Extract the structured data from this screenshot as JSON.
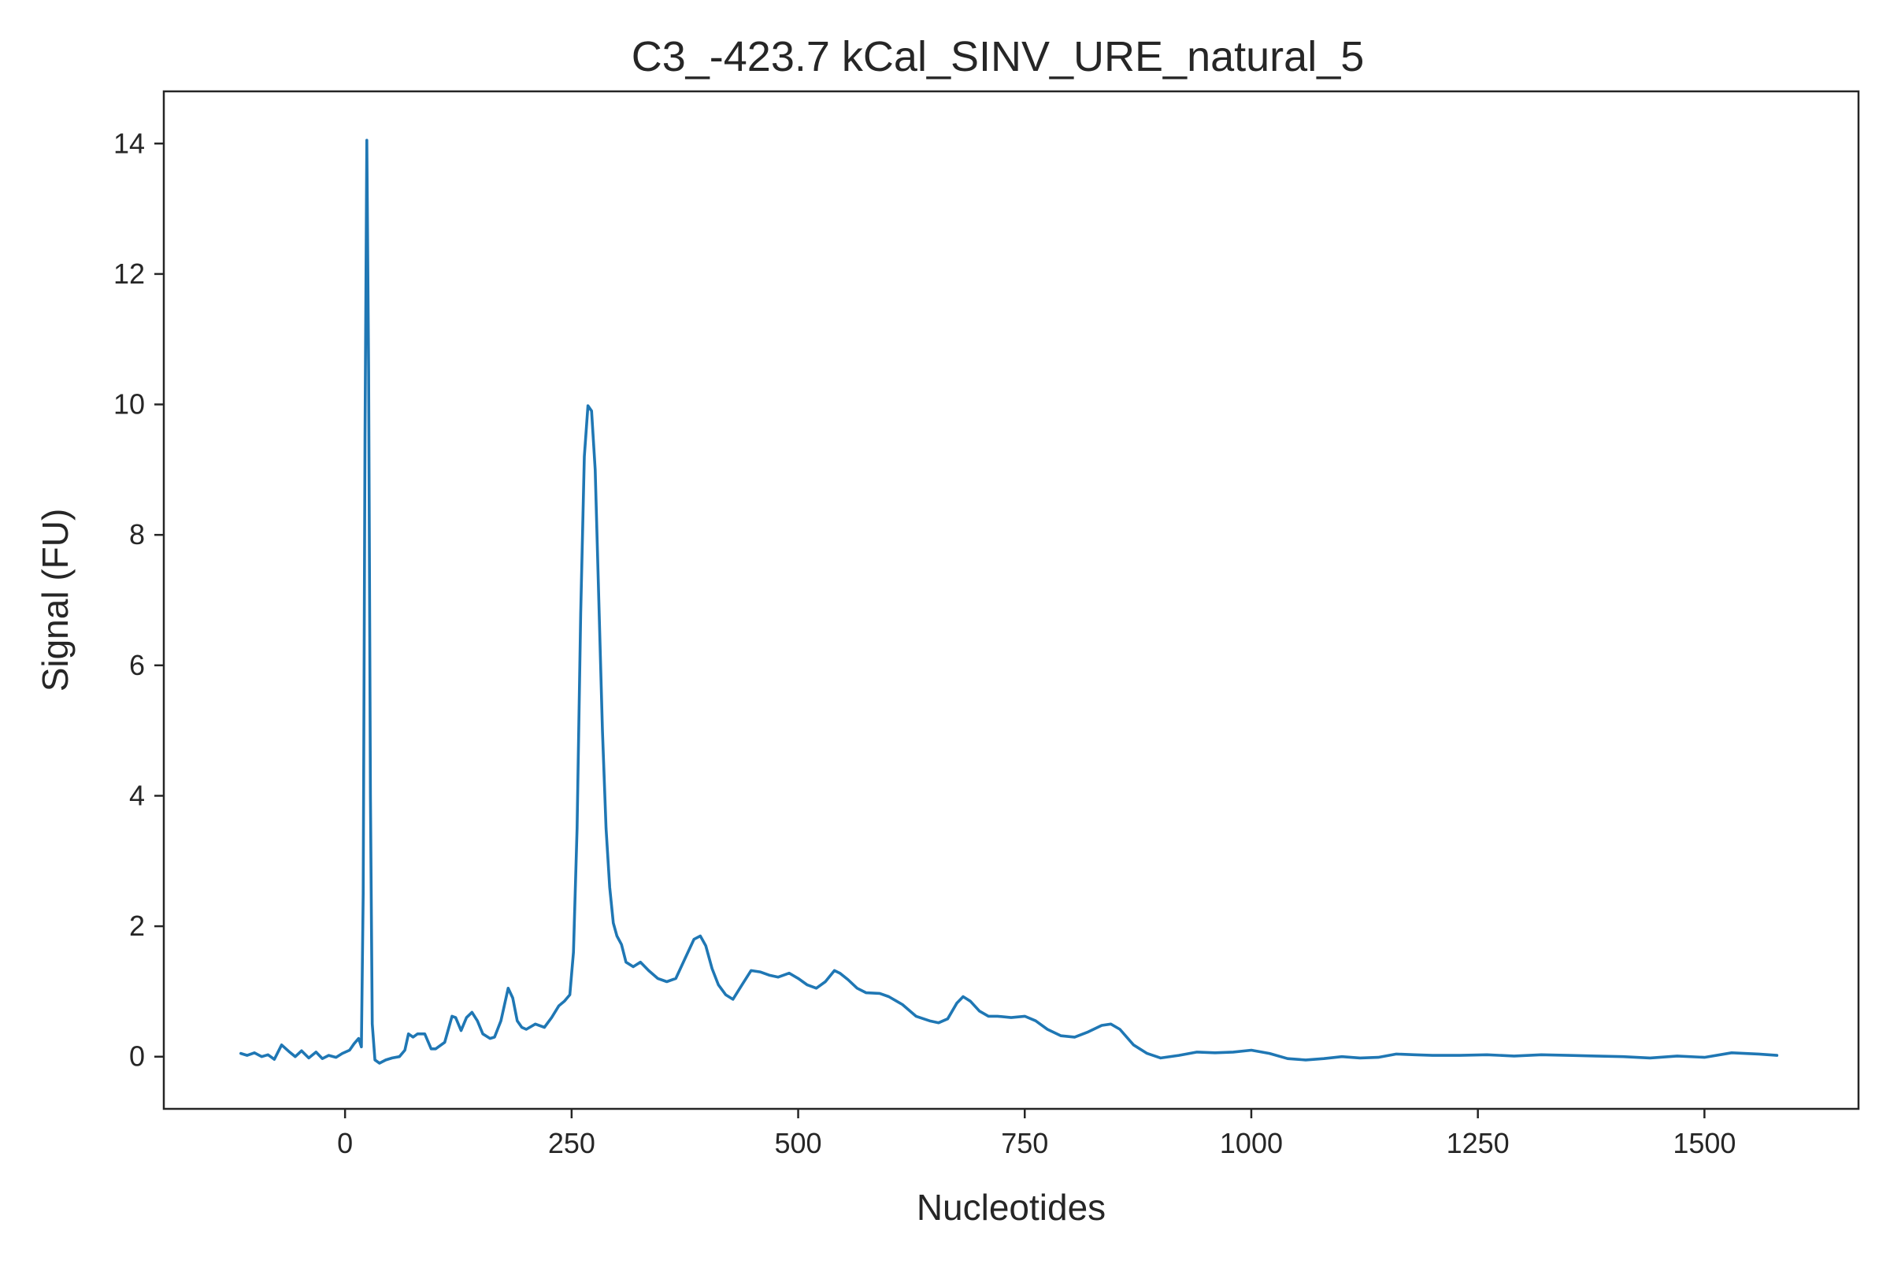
{
  "chart_data": {
    "type": "line",
    "title": "C3_-423.7 kCal_SINV_URE_natural_5",
    "xlabel": "Nucleotides",
    "ylabel": "Signal (FU)",
    "xlim": [
      -200,
      1670
    ],
    "ylim": [
      -0.8,
      14.8
    ],
    "x_ticks": [
      0,
      250,
      500,
      750,
      1000,
      1250,
      1500
    ],
    "x_tick_labels": [
      "0",
      "250",
      "500",
      "750",
      "1000",
      "1250",
      "1500"
    ],
    "y_ticks": [
      0,
      2,
      4,
      6,
      8,
      10,
      12,
      14
    ],
    "y_tick_labels": [
      "0",
      "2",
      "4",
      "6",
      "8",
      "10",
      "12",
      "14"
    ],
    "grid": false,
    "legend": "none",
    "series": [
      {
        "color": "#1f77b4",
        "x": [
          -115,
          -108,
          -100,
          -92,
          -85,
          -78,
          -70,
          -62,
          -55,
          -48,
          -40,
          -32,
          -25,
          -18,
          -10,
          -3,
          5,
          10,
          15,
          18,
          20,
          22,
          24,
          26,
          28,
          30,
          33,
          38,
          45,
          52,
          60,
          66,
          70,
          75,
          80,
          88,
          95,
          100,
          110,
          118,
          122,
          128,
          134,
          140,
          146,
          152,
          160,
          165,
          172,
          180,
          185,
          190,
          195,
          200,
          210,
          220,
          228,
          236,
          242,
          248,
          252,
          256,
          260,
          264,
          268,
          272,
          276,
          280,
          284,
          288,
          292,
          296,
          300,
          305,
          310,
          318,
          326,
          335,
          345,
          355,
          365,
          375,
          385,
          392,
          398,
          405,
          412,
          420,
          428,
          438,
          448,
          458,
          468,
          478,
          490,
          500,
          510,
          520,
          530,
          540,
          546,
          555,
          565,
          575,
          590,
          600,
          615,
          630,
          645,
          655,
          665,
          675,
          682,
          690,
          700,
          710,
          720,
          735,
          750,
          762,
          775,
          790,
          805,
          820,
          835,
          845,
          855,
          870,
          885,
          900,
          920,
          940,
          960,
          980,
          1000,
          1020,
          1040,
          1060,
          1080,
          1100,
          1120,
          1140,
          1160,
          1180,
          1200,
          1230,
          1260,
          1290,
          1320,
          1350,
          1380,
          1410,
          1440,
          1470,
          1500,
          1530,
          1560,
          1580
        ],
        "y": [
          0.05,
          0.02,
          0.06,
          0.0,
          0.03,
          -0.04,
          0.18,
          0.08,
          0.0,
          0.09,
          -0.02,
          0.07,
          -0.03,
          0.02,
          -0.01,
          0.05,
          0.1,
          0.2,
          0.28,
          0.15,
          2.5,
          9.5,
          14.05,
          10.5,
          4.0,
          0.5,
          -0.05,
          -0.1,
          -0.05,
          -0.02,
          0.0,
          0.1,
          0.35,
          0.3,
          0.35,
          0.35,
          0.12,
          0.12,
          0.22,
          0.62,
          0.6,
          0.4,
          0.6,
          0.68,
          0.55,
          0.35,
          0.28,
          0.3,
          0.55,
          1.05,
          0.9,
          0.55,
          0.45,
          0.42,
          0.5,
          0.45,
          0.6,
          0.78,
          0.85,
          0.95,
          1.6,
          3.5,
          6.8,
          9.2,
          9.98,
          9.9,
          9.0,
          7.0,
          5.0,
          3.5,
          2.6,
          2.05,
          1.85,
          1.72,
          1.45,
          1.38,
          1.45,
          1.32,
          1.2,
          1.15,
          1.2,
          1.5,
          1.8,
          1.85,
          1.7,
          1.35,
          1.1,
          0.95,
          0.88,
          1.1,
          1.32,
          1.3,
          1.25,
          1.22,
          1.28,
          1.2,
          1.1,
          1.05,
          1.15,
          1.32,
          1.28,
          1.18,
          1.05,
          0.98,
          0.97,
          0.92,
          0.8,
          0.62,
          0.55,
          0.52,
          0.58,
          0.82,
          0.92,
          0.85,
          0.7,
          0.62,
          0.62,
          0.6,
          0.62,
          0.55,
          0.42,
          0.32,
          0.3,
          0.38,
          0.48,
          0.5,
          0.42,
          0.18,
          0.05,
          -0.02,
          0.02,
          0.07,
          0.06,
          0.07,
          0.1,
          0.05,
          -0.03,
          -0.05,
          -0.03,
          0.0,
          -0.02,
          -0.01,
          0.04,
          0.03,
          0.02,
          0.02,
          0.03,
          0.01,
          0.03,
          0.02,
          0.01,
          0.0,
          -0.02,
          0.01,
          -0.01,
          0.06,
          0.04,
          0.02
        ]
      }
    ]
  }
}
